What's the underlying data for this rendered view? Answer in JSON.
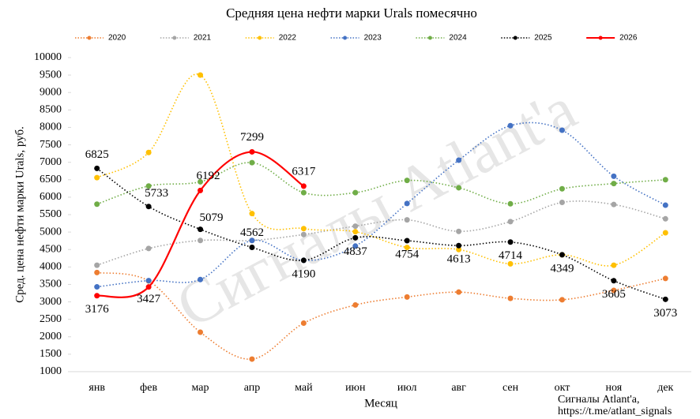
{
  "chart_data": {
    "type": "line",
    "title": "Средняя цена нефти марки Urals помесячно",
    "x_label": "Месяц",
    "y_label": "Сред. цена нефти марки Urals, руб.",
    "watermark": "Сигналы Atlant'a",
    "annotation": [
      "Сигналы Atlant'a,",
      "https://t.me/atlant_signals"
    ],
    "categories": [
      "янв",
      "фев",
      "мар",
      "апр",
      "май",
      "июн",
      "июл",
      "авг",
      "сен",
      "окт",
      "ноя",
      "дек"
    ],
    "ylim": [
      1000,
      10000
    ],
    "yticks": [
      1000,
      1500,
      2000,
      2500,
      3000,
      3500,
      4000,
      4500,
      5000,
      5500,
      6000,
      6500,
      7000,
      7500,
      8000,
      8500,
      9000,
      9500,
      10000
    ],
    "legend": "top",
    "series": [
      {
        "name": "2020",
        "color": "#ED7D31",
        "line_style": "dotted",
        "values": [
          3840,
          3600,
          2130,
          1360,
          2390,
          2910,
          3140,
          3280,
          3100,
          3060,
          3330,
          3670
        ]
      },
      {
        "name": "2021",
        "color": "#A5A5A5",
        "line_style": "dotted",
        "values": [
          4050,
          4530,
          4760,
          4760,
          4930,
          5170,
          5350,
          5020,
          5300,
          5850,
          5790,
          5380
        ]
      },
      {
        "name": "2022",
        "color": "#FFC000",
        "line_style": "dotted",
        "values": [
          6560,
          7280,
          9500,
          5530,
          5100,
          5010,
          4560,
          4500,
          4090,
          4350,
          4050,
          4980
        ]
      },
      {
        "name": "2023",
        "color": "#4472C4",
        "line_style": "dotted",
        "values": [
          3430,
          3610,
          3640,
          4760,
          4190,
          4600,
          5820,
          7060,
          8050,
          7920,
          6600,
          5770
        ]
      },
      {
        "name": "2024",
        "color": "#70AD47",
        "line_style": "dotted",
        "values": [
          5800,
          6320,
          6440,
          6990,
          6130,
          6130,
          6480,
          6270,
          5810,
          6240,
          6390,
          6500
        ]
      },
      {
        "name": "2025",
        "color": "#000000",
        "line_style": "dotted",
        "labels": true,
        "values": [
          6825,
          5733,
          5079,
          4562,
          4190,
          4837,
          4754,
          4613,
          4714,
          4349,
          3605,
          3073
        ]
      },
      {
        "name": "2026",
        "color": "#FF0000",
        "line_style": "solid",
        "labels": true,
        "values": [
          3176,
          3427,
          6192,
          7299,
          6317,
          null,
          null,
          null,
          null,
          null,
          null,
          null
        ]
      }
    ]
  }
}
